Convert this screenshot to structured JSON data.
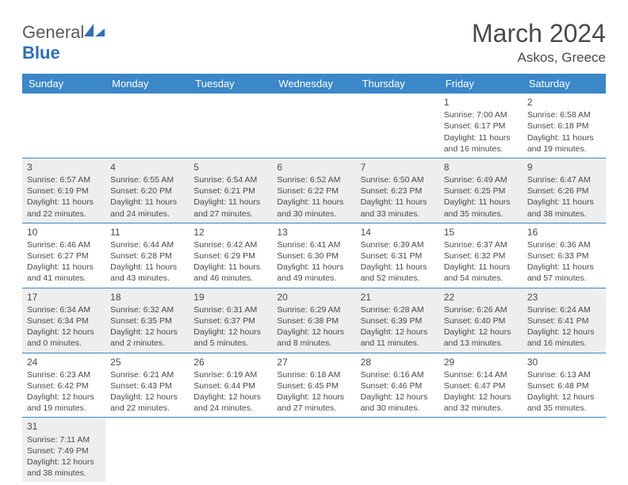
{
  "logo": {
    "text1": "General",
    "text2": "Blue"
  },
  "title": "March 2024",
  "location": "Askos, Greece",
  "colors": {
    "header_bg": "#3b87c8",
    "header_text": "#ffffff",
    "row_alt_bg": "#eeeeee",
    "row_bg": "#ffffff",
    "border": "#3b87c8",
    "text": "#4a4a4a",
    "logo_gray": "#5a5a5a",
    "logo_blue": "#2d6fb7"
  },
  "day_headers": [
    "Sunday",
    "Monday",
    "Tuesday",
    "Wednesday",
    "Thursday",
    "Friday",
    "Saturday"
  ],
  "weeks": [
    [
      null,
      null,
      null,
      null,
      null,
      {
        "n": "1",
        "sr": "Sunrise: 7:00 AM",
        "ss": "Sunset: 6:17 PM",
        "d1": "Daylight: 11 hours",
        "d2": "and 16 minutes."
      },
      {
        "n": "2",
        "sr": "Sunrise: 6:58 AM",
        "ss": "Sunset: 6:18 PM",
        "d1": "Daylight: 11 hours",
        "d2": "and 19 minutes."
      }
    ],
    [
      {
        "n": "3",
        "sr": "Sunrise: 6:57 AM",
        "ss": "Sunset: 6:19 PM",
        "d1": "Daylight: 11 hours",
        "d2": "and 22 minutes."
      },
      {
        "n": "4",
        "sr": "Sunrise: 6:55 AM",
        "ss": "Sunset: 6:20 PM",
        "d1": "Daylight: 11 hours",
        "d2": "and 24 minutes."
      },
      {
        "n": "5",
        "sr": "Sunrise: 6:54 AM",
        "ss": "Sunset: 6:21 PM",
        "d1": "Daylight: 11 hours",
        "d2": "and 27 minutes."
      },
      {
        "n": "6",
        "sr": "Sunrise: 6:52 AM",
        "ss": "Sunset: 6:22 PM",
        "d1": "Daylight: 11 hours",
        "d2": "and 30 minutes."
      },
      {
        "n": "7",
        "sr": "Sunrise: 6:50 AM",
        "ss": "Sunset: 6:23 PM",
        "d1": "Daylight: 11 hours",
        "d2": "and 33 minutes."
      },
      {
        "n": "8",
        "sr": "Sunrise: 6:49 AM",
        "ss": "Sunset: 6:25 PM",
        "d1": "Daylight: 11 hours",
        "d2": "and 35 minutes."
      },
      {
        "n": "9",
        "sr": "Sunrise: 6:47 AM",
        "ss": "Sunset: 6:26 PM",
        "d1": "Daylight: 11 hours",
        "d2": "and 38 minutes."
      }
    ],
    [
      {
        "n": "10",
        "sr": "Sunrise: 6:46 AM",
        "ss": "Sunset: 6:27 PM",
        "d1": "Daylight: 11 hours",
        "d2": "and 41 minutes."
      },
      {
        "n": "11",
        "sr": "Sunrise: 6:44 AM",
        "ss": "Sunset: 6:28 PM",
        "d1": "Daylight: 11 hours",
        "d2": "and 43 minutes."
      },
      {
        "n": "12",
        "sr": "Sunrise: 6:42 AM",
        "ss": "Sunset: 6:29 PM",
        "d1": "Daylight: 11 hours",
        "d2": "and 46 minutes."
      },
      {
        "n": "13",
        "sr": "Sunrise: 6:41 AM",
        "ss": "Sunset: 6:30 PM",
        "d1": "Daylight: 11 hours",
        "d2": "and 49 minutes."
      },
      {
        "n": "14",
        "sr": "Sunrise: 6:39 AM",
        "ss": "Sunset: 6:31 PM",
        "d1": "Daylight: 11 hours",
        "d2": "and 52 minutes."
      },
      {
        "n": "15",
        "sr": "Sunrise: 6:37 AM",
        "ss": "Sunset: 6:32 PM",
        "d1": "Daylight: 11 hours",
        "d2": "and 54 minutes."
      },
      {
        "n": "16",
        "sr": "Sunrise: 6:36 AM",
        "ss": "Sunset: 6:33 PM",
        "d1": "Daylight: 11 hours",
        "d2": "and 57 minutes."
      }
    ],
    [
      {
        "n": "17",
        "sr": "Sunrise: 6:34 AM",
        "ss": "Sunset: 6:34 PM",
        "d1": "Daylight: 12 hours",
        "d2": "and 0 minutes."
      },
      {
        "n": "18",
        "sr": "Sunrise: 6:32 AM",
        "ss": "Sunset: 6:35 PM",
        "d1": "Daylight: 12 hours",
        "d2": "and 2 minutes."
      },
      {
        "n": "19",
        "sr": "Sunrise: 6:31 AM",
        "ss": "Sunset: 6:37 PM",
        "d1": "Daylight: 12 hours",
        "d2": "and 5 minutes."
      },
      {
        "n": "20",
        "sr": "Sunrise: 6:29 AM",
        "ss": "Sunset: 6:38 PM",
        "d1": "Daylight: 12 hours",
        "d2": "and 8 minutes."
      },
      {
        "n": "21",
        "sr": "Sunrise: 6:28 AM",
        "ss": "Sunset: 6:39 PM",
        "d1": "Daylight: 12 hours",
        "d2": "and 11 minutes."
      },
      {
        "n": "22",
        "sr": "Sunrise: 6:26 AM",
        "ss": "Sunset: 6:40 PM",
        "d1": "Daylight: 12 hours",
        "d2": "and 13 minutes."
      },
      {
        "n": "23",
        "sr": "Sunrise: 6:24 AM",
        "ss": "Sunset: 6:41 PM",
        "d1": "Daylight: 12 hours",
        "d2": "and 16 minutes."
      }
    ],
    [
      {
        "n": "24",
        "sr": "Sunrise: 6:23 AM",
        "ss": "Sunset: 6:42 PM",
        "d1": "Daylight: 12 hours",
        "d2": "and 19 minutes."
      },
      {
        "n": "25",
        "sr": "Sunrise: 6:21 AM",
        "ss": "Sunset: 6:43 PM",
        "d1": "Daylight: 12 hours",
        "d2": "and 22 minutes."
      },
      {
        "n": "26",
        "sr": "Sunrise: 6:19 AM",
        "ss": "Sunset: 6:44 PM",
        "d1": "Daylight: 12 hours",
        "d2": "and 24 minutes."
      },
      {
        "n": "27",
        "sr": "Sunrise: 6:18 AM",
        "ss": "Sunset: 6:45 PM",
        "d1": "Daylight: 12 hours",
        "d2": "and 27 minutes."
      },
      {
        "n": "28",
        "sr": "Sunrise: 6:16 AM",
        "ss": "Sunset: 6:46 PM",
        "d1": "Daylight: 12 hours",
        "d2": "and 30 minutes."
      },
      {
        "n": "29",
        "sr": "Sunrise: 6:14 AM",
        "ss": "Sunset: 6:47 PM",
        "d1": "Daylight: 12 hours",
        "d2": "and 32 minutes."
      },
      {
        "n": "30",
        "sr": "Sunrise: 6:13 AM",
        "ss": "Sunset: 6:48 PM",
        "d1": "Daylight: 12 hours",
        "d2": "and 35 minutes."
      }
    ],
    [
      {
        "n": "31",
        "sr": "Sunrise: 7:11 AM",
        "ss": "Sunset: 7:49 PM",
        "d1": "Daylight: 12 hours",
        "d2": "and 38 minutes."
      },
      null,
      null,
      null,
      null,
      null,
      null
    ]
  ]
}
